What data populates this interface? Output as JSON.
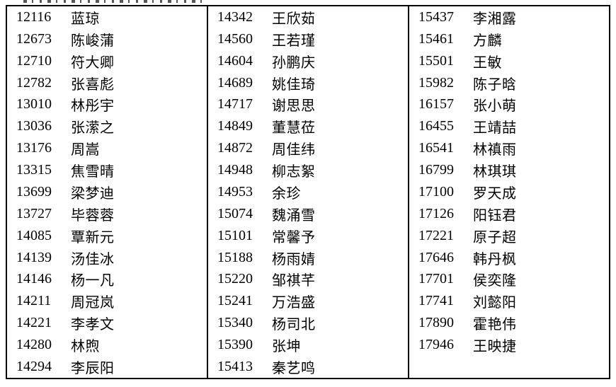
{
  "page": {
    "background_color": "#ffffff",
    "text_color": "#000000",
    "border_color": "#000000"
  },
  "table": {
    "columns": [
      {
        "rows": [
          {
            "id": "12116",
            "name": "蓝琼"
          },
          {
            "id": "12673",
            "name": "陈峻蒲"
          },
          {
            "id": "12710",
            "name": "符大卿"
          },
          {
            "id": "12782",
            "name": "张喜彪"
          },
          {
            "id": "13010",
            "name": "林彤宇"
          },
          {
            "id": "13036",
            "name": "张潆之"
          },
          {
            "id": "13176",
            "name": "周嵩"
          },
          {
            "id": "13315",
            "name": "焦雪晴"
          },
          {
            "id": "13699",
            "name": "梁梦迪"
          },
          {
            "id": "13727",
            "name": "毕蓉蓉"
          },
          {
            "id": "14085",
            "name": "覃新元"
          },
          {
            "id": "14139",
            "name": "汤佳冰"
          },
          {
            "id": "14146",
            "name": "杨一凡"
          },
          {
            "id": "14211",
            "name": "周冠岚"
          },
          {
            "id": "14221",
            "name": "李孝文"
          },
          {
            "id": "14280",
            "name": "林煦"
          },
          {
            "id": "14294",
            "name": "李辰阳"
          }
        ]
      },
      {
        "rows": [
          {
            "id": "14342",
            "name": "王欣茹"
          },
          {
            "id": "14560",
            "name": "王若瑾"
          },
          {
            "id": "14604",
            "name": "孙鹏庆"
          },
          {
            "id": "14689",
            "name": "姚佳琦"
          },
          {
            "id": "14717",
            "name": "谢思思"
          },
          {
            "id": "14849",
            "name": "董慧莅"
          },
          {
            "id": "14872",
            "name": "周佳纬"
          },
          {
            "id": "14948",
            "name": "柳志絮"
          },
          {
            "id": "14953",
            "name": "余珍"
          },
          {
            "id": "15074",
            "name": "魏涌雪"
          },
          {
            "id": "15101",
            "name": "常馨予"
          },
          {
            "id": "15188",
            "name": "杨雨婧"
          },
          {
            "id": "15220",
            "name": "邹祺芊"
          },
          {
            "id": "15241",
            "name": "万浩盛"
          },
          {
            "id": "15340",
            "name": "杨司北"
          },
          {
            "id": "15390",
            "name": "张坤"
          },
          {
            "id": "15413",
            "name": "秦艺鸣"
          }
        ]
      },
      {
        "rows": [
          {
            "id": "15437",
            "name": "李湘露"
          },
          {
            "id": "15461",
            "name": "方麟"
          },
          {
            "id": "15501",
            "name": "王敏"
          },
          {
            "id": "15982",
            "name": "陈子晗"
          },
          {
            "id": "16157",
            "name": "张小萌"
          },
          {
            "id": "16455",
            "name": "王靖喆"
          },
          {
            "id": "16541",
            "name": "林禛雨"
          },
          {
            "id": "16799",
            "name": "林琪琪"
          },
          {
            "id": "17100",
            "name": "罗天成"
          },
          {
            "id": "17126",
            "name": "阳钰君"
          },
          {
            "id": "17221",
            "name": "原子超"
          },
          {
            "id": "17646",
            "name": "韩丹枫"
          },
          {
            "id": "17701",
            "name": "侯奕隆"
          },
          {
            "id": "17741",
            "name": "刘懿阳"
          },
          {
            "id": "17890",
            "name": "霍艳伟"
          },
          {
            "id": "17946",
            "name": "王映捷"
          }
        ]
      }
    ]
  }
}
